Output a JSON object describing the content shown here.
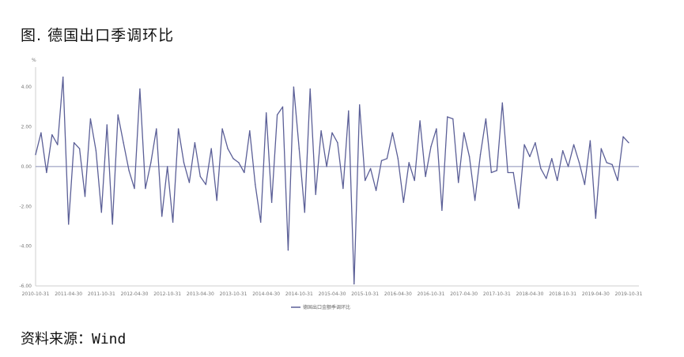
{
  "figure": {
    "title": "图.  德国出口季调环比",
    "source": "资料来源：Wind"
  },
  "colors": {
    "series": "#5b5f97",
    "zero_line": "#8a8fb8",
    "axis": "#cfcfcf"
  },
  "chart_data": {
    "type": "line",
    "y_unit_label": "%",
    "ylim": [
      -6,
      5
    ],
    "y_ticks": [
      -6,
      -4,
      -2,
      0,
      2,
      4
    ],
    "y_tick_labels": [
      "-6.00",
      "-4.00",
      "-2.00",
      "0.00",
      "2.00",
      "4.00"
    ],
    "x_tick_labels": [
      "2010-10-31",
      "2011-04-30",
      "2011-10-31",
      "2012-04-30",
      "2012-10-31",
      "2013-04-30",
      "2013-10-31",
      "2014-04-30",
      "2014-10-31",
      "2015-04-30",
      "2015-10-31",
      "2016-04-30",
      "2016-10-31",
      "2017-04-30",
      "2017-10-31",
      "2018-04-30",
      "2018-10-31",
      "2019-04-30",
      "2019-10-31"
    ],
    "x_start": "2010-10-31",
    "x_end": "2019-10-31",
    "frequency": "monthly",
    "legend": "德国出口金额季调环比",
    "legend_position": "bottom",
    "grid": false,
    "series": [
      {
        "name": "德国出口金额季调环比",
        "values": [
          0.6,
          1.7,
          -0.3,
          1.6,
          1.1,
          4.5,
          -2.9,
          1.2,
          0.9,
          -1.5,
          2.4,
          0.8,
          -2.3,
          2.1,
          -2.9,
          2.6,
          1.2,
          -0.2,
          -1.1,
          3.9,
          -1.1,
          0.2,
          1.9,
          -2.5,
          0.0,
          -2.8,
          1.9,
          0.2,
          -0.8,
          1.2,
          -0.5,
          -0.9,
          0.9,
          -1.7,
          1.9,
          0.9,
          0.4,
          0.2,
          -0.3,
          1.8,
          -0.9,
          -2.8,
          2.7,
          -1.8,
          2.6,
          3.0,
          -4.2,
          4.0,
          0.9,
          -2.3,
          3.9,
          -1.4,
          1.8,
          0.0,
          1.7,
          1.2,
          -1.1,
          2.8,
          -5.9,
          3.1,
          -0.7,
          -0.1,
          -1.2,
          0.3,
          0.4,
          1.7,
          0.4,
          -1.8,
          0.2,
          -0.7,
          2.3,
          -0.5,
          1.0,
          1.9,
          -2.2,
          2.5,
          2.4,
          -0.8,
          1.7,
          0.5,
          -1.7,
          0.6,
          2.4,
          -0.3,
          -0.2,
          3.2,
          -0.3,
          -0.3,
          -2.1,
          1.1,
          0.5,
          1.2,
          -0.1,
          -0.6,
          0.4,
          -0.7,
          0.8,
          0.0,
          1.1,
          0.2,
          -0.9,
          1.3,
          -2.6,
          0.9,
          0.2,
          0.1,
          -0.7,
          1.5,
          1.2
        ]
      }
    ]
  }
}
